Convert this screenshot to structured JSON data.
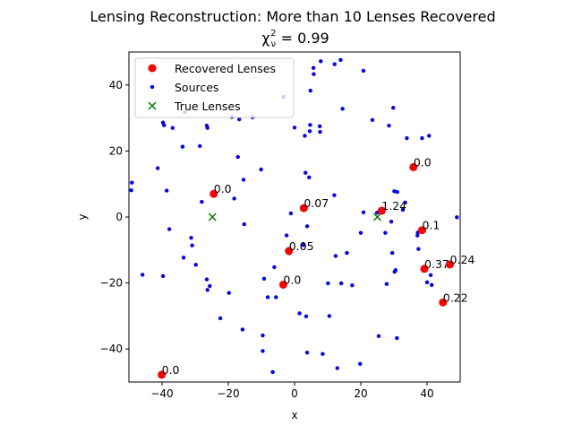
{
  "chart_data": {
    "type": "scatter",
    "title_line1": "Lensing Reconstruction: More than 10 Lenses Recovered",
    "title_line2_prefix": "χ",
    "title_line2_sub": "ν",
    "title_line2_sup": "2",
    "title_line2_suffix": " = 0.99",
    "xlabel": "x",
    "ylabel": "y",
    "xlim": [
      -50,
      50
    ],
    "ylim": [
      -50,
      50
    ],
    "xticks": [
      -40,
      -20,
      0,
      20,
      40
    ],
    "yticks": [
      -40,
      -20,
      0,
      20,
      40
    ],
    "grid": false,
    "legend_position": "top-left",
    "colors": {
      "recovered": "#ff0000",
      "sources": "#0000ff",
      "true": "#008000"
    },
    "legend": [
      {
        "label": "Recovered Lenses",
        "marker": "circle-large",
        "color": "#ff0000"
      },
      {
        "label": "Sources",
        "marker": "circle-small",
        "color": "#0000ff"
      },
      {
        "label": "True Lenses",
        "marker": "x",
        "color": "#008000"
      }
    ],
    "recovered_lenses": [
      {
        "x": -24.4,
        "y": 7.0,
        "label": "0.0"
      },
      {
        "x": 2.8,
        "y": 2.7,
        "label": "0.07"
      },
      {
        "x": -1.7,
        "y": -10.3,
        "label": "0.05"
      },
      {
        "x": -3.4,
        "y": -20.5,
        "label": "0.0"
      },
      {
        "x": 26.3,
        "y": 1.9,
        "label": "1.24"
      },
      {
        "x": 35.9,
        "y": 15.1,
        "label": "0.0"
      },
      {
        "x": 38.5,
        "y": -4.0,
        "label": "0.1"
      },
      {
        "x": 39.2,
        "y": -15.7,
        "label": "0.37"
      },
      {
        "x": 46.9,
        "y": -14.4,
        "label": "0.24"
      },
      {
        "x": 44.8,
        "y": -25.9,
        "label": "0.22"
      },
      {
        "x": -40.1,
        "y": -47.8,
        "label": "0.0"
      }
    ],
    "true_lenses": [
      {
        "x": -24.8,
        "y": 0.0
      },
      {
        "x": 25.0,
        "y": 0.0
      }
    ],
    "sources": [
      [
        -49.1,
        10.4
      ],
      [
        -49.3,
        8.1
      ],
      [
        -45.9,
        -17.5
      ],
      [
        -41.3,
        14.8
      ],
      [
        -39.7,
        28.6
      ],
      [
        -39.4,
        27.8
      ],
      [
        -39.7,
        -17.9
      ],
      [
        -38.6,
        8.0
      ],
      [
        -37.8,
        -3.7
      ],
      [
        -36.8,
        27.0
      ],
      [
        -33.8,
        21.3
      ],
      [
        -33.5,
        -12.3
      ],
      [
        -33.1,
        31.8
      ],
      [
        -31.2,
        -6.3
      ],
      [
        -30.9,
        -8.6
      ],
      [
        -29.8,
        -14.5
      ],
      [
        -28.6,
        21.5
      ],
      [
        -28.0,
        4.6
      ],
      [
        -26.5,
        27.7
      ],
      [
        -26.3,
        27.0
      ],
      [
        -26.5,
        -18.9
      ],
      [
        -26.3,
        -22.1
      ],
      [
        -25.6,
        -20.9
      ],
      [
        -22.4,
        -30.7
      ],
      [
        -19.8,
        -23.0
      ],
      [
        -18.9,
        30.3
      ],
      [
        -18.2,
        5.6
      ],
      [
        -17.1,
        18.2
      ],
      [
        -16.7,
        29.6
      ],
      [
        -15.7,
        -34.1
      ],
      [
        -15.4,
        11.3
      ],
      [
        -15.2,
        -2.2
      ],
      [
        -12.7,
        30.2
      ],
      [
        -10.1,
        14.4
      ],
      [
        -9.6,
        -35.9
      ],
      [
        -9.6,
        -40.6
      ],
      [
        -9.2,
        -18.7
      ],
      [
        -8.1,
        -24.3
      ],
      [
        -6.6,
        -47.0
      ],
      [
        -5.6,
        -24.3
      ],
      [
        -6.1,
        -15.2
      ],
      [
        -3.3,
        36.4
      ],
      [
        -2.4,
        -5.6
      ],
      [
        -1.5,
        -11.0
      ],
      [
        -1.1,
        1.1
      ],
      [
        0.0,
        27.1
      ],
      [
        1.5,
        -29.2
      ],
      [
        2.6,
        -8.5
      ],
      [
        3.1,
        24.6
      ],
      [
        3.3,
        13.4
      ],
      [
        3.5,
        -30.1
      ],
      [
        3.8,
        -41.1
      ],
      [
        3.8,
        -2.8
      ],
      [
        4.6,
        26.0
      ],
      [
        4.4,
        12.0
      ],
      [
        4.7,
        27.9
      ],
      [
        4.8,
        38.3
      ],
      [
        5.7,
        45.2
      ],
      [
        5.8,
        43.3
      ],
      [
        7.9,
        47.2
      ],
      [
        7.6,
        27.5
      ],
      [
        7.7,
        25.8
      ],
      [
        8.5,
        -41.5
      ],
      [
        10.1,
        -20.1
      ],
      [
        10.5,
        -30.0
      ],
      [
        12.0,
        6.6
      ],
      [
        12.1,
        46.3
      ],
      [
        12.4,
        -11.8
      ],
      [
        12.9,
        -45.8
      ],
      [
        13.9,
        47.6
      ],
      [
        14.5,
        32.8
      ],
      [
        14.1,
        -20.1
      ],
      [
        15.8,
        -10.9
      ],
      [
        17.4,
        -20.7
      ],
      [
        19.8,
        -44.5
      ],
      [
        20.0,
        -4.8
      ],
      [
        20.8,
        44.3
      ],
      [
        20.8,
        1.4
      ],
      [
        23.5,
        29.4
      ],
      [
        24.9,
        1.3
      ],
      [
        25.4,
        -36.1
      ],
      [
        27.4,
        -4.8
      ],
      [
        27.8,
        -20.3
      ],
      [
        28.5,
        27.7
      ],
      [
        29.2,
        -1.4
      ],
      [
        29.8,
        33.1
      ],
      [
        29.5,
        -10.9
      ],
      [
        30.1,
        7.8
      ],
      [
        30.2,
        -16.6
      ],
      [
        30.5,
        -16.1
      ],
      [
        31.0,
        7.6
      ],
      [
        30.9,
        -36.7
      ],
      [
        32.7,
        2.2
      ],
      [
        33.9,
        23.9
      ],
      [
        33.4,
        4.4
      ],
      [
        37.2,
        -4.7
      ],
      [
        37.1,
        -5.6
      ],
      [
        37.4,
        -9.7
      ],
      [
        38.5,
        23.9
      ],
      [
        40.0,
        -19.8
      ],
      [
        40.6,
        24.6
      ],
      [
        41.1,
        -17.6
      ],
      [
        41.4,
        -20.6
      ],
      [
        49.0,
        -0.1
      ]
    ]
  }
}
